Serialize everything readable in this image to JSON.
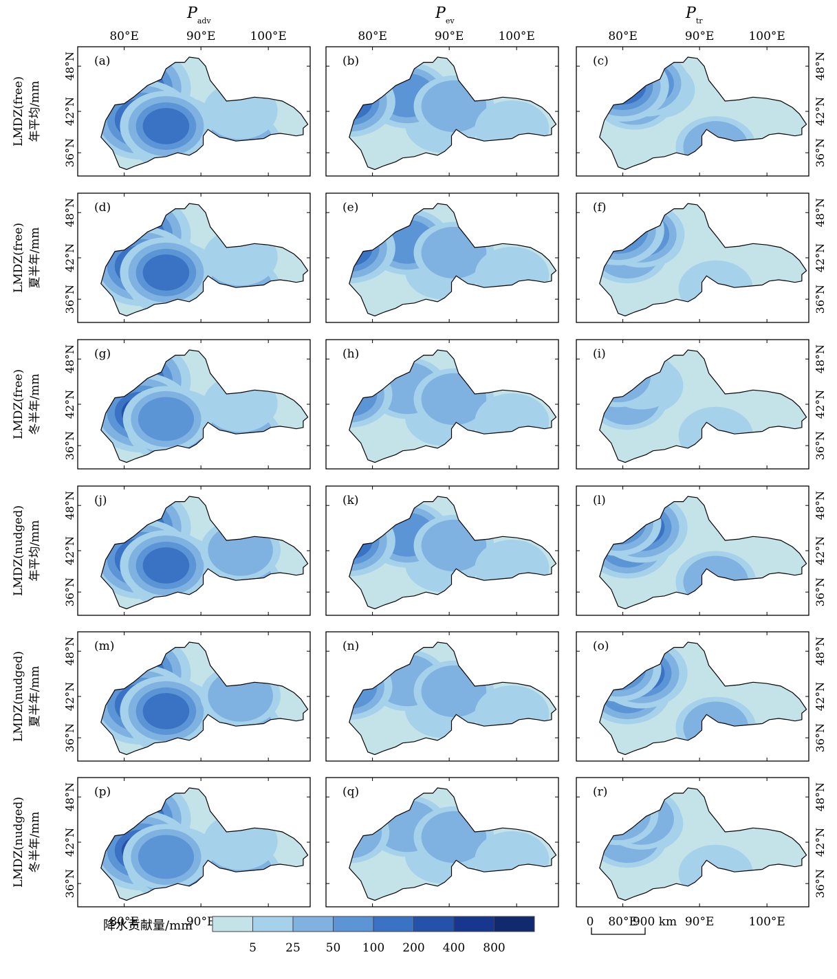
{
  "columns": [
    {
      "symbol": "P",
      "sub": "adv"
    },
    {
      "symbol": "P",
      "sub": "ev"
    },
    {
      "symbol": "P",
      "sub": "tr"
    }
  ],
  "rows": [
    {
      "line1": "LMDZ(free)",
      "line2": "年平均/mm"
    },
    {
      "line1": "LMDZ(free)",
      "line2": "夏半年/mm"
    },
    {
      "line1": "LMDZ(free)",
      "line2": "冬半年/mm"
    },
    {
      "line1": "LMDZ(nudged)",
      "line2": "年平均/mm"
    },
    {
      "line1": "LMDZ(nudged)",
      "line2": "夏半年/mm"
    },
    {
      "line1": "LMDZ(nudged)",
      "line2": "冬半年/mm"
    }
  ],
  "panel_labels": [
    "(a)",
    "(b)",
    "(c)",
    "(d)",
    "(e)",
    "(f)",
    "(g)",
    "(h)",
    "(i)",
    "(j)",
    "(k)",
    "(l)",
    "(m)",
    "(n)",
    "(o)",
    "(p)",
    "(q)",
    "(r)"
  ],
  "lon_ticks": [
    "80°E",
    "90°E",
    "100°E"
  ],
  "lat_ticks": [
    "48°N",
    "42°N",
    "36°N"
  ],
  "legend": {
    "title": "降水贡献量/mm",
    "breaks": [
      "5",
      "25",
      "50",
      "100",
      "200",
      "400",
      "800"
    ],
    "colors": [
      "#c3e3e9",
      "#a6d1ea",
      "#7fb2e1",
      "#5c95d6",
      "#3b73c4",
      "#2452a8",
      "#17378f",
      "#0f2a6e"
    ]
  },
  "scale_bar": {
    "zero": "0",
    "label": "900 km"
  },
  "panel_levels": [
    [
      [
        7,
        0.5,
        0.1
      ],
      [
        6,
        0.55,
        0.45
      ],
      [
        5,
        0.42,
        0.6
      ],
      [
        2,
        0.7,
        0.7
      ],
      [
        4,
        0.38,
        0.52
      ],
      [
        1,
        0.7,
        0.35
      ]
    ],
    [
      [
        1,
        0.5,
        0.5
      ],
      [
        3,
        0.35,
        0.18
      ],
      [
        2,
        0.55,
        0.3
      ],
      [
        4,
        0.1,
        0.25
      ],
      [
        1,
        0.8,
        0.55
      ]
    ],
    [
      [
        1,
        0.35,
        0.12
      ],
      [
        2,
        0.25,
        0.22
      ],
      [
        3,
        0.3,
        0.05
      ],
      [
        4,
        0.2,
        0.08
      ],
      [
        2,
        0.6,
        0.75
      ]
    ],
    [
      [
        7,
        0.5,
        0.1
      ],
      [
        6,
        0.55,
        0.45
      ],
      [
        5,
        0.42,
        0.6
      ],
      [
        2,
        0.7,
        0.7
      ],
      [
        4,
        0.38,
        0.52
      ],
      [
        1,
        0.7,
        0.35
      ]
    ],
    [
      [
        1,
        0.5,
        0.5
      ],
      [
        3,
        0.35,
        0.18
      ],
      [
        2,
        0.55,
        0.3
      ],
      [
        4,
        0.1,
        0.25
      ],
      [
        1,
        0.8,
        0.55
      ]
    ],
    [
      [
        1,
        0.3,
        0.15
      ],
      [
        2,
        0.22,
        0.3
      ],
      [
        3,
        0.28,
        0.1
      ],
      [
        4,
        0.18,
        0.05
      ],
      [
        1,
        0.6,
        0.7
      ]
    ],
    [
      [
        7,
        0.5,
        0.1
      ],
      [
        6,
        0.55,
        0.45
      ],
      [
        5,
        0.42,
        0.6
      ],
      [
        2,
        0.7,
        0.7
      ],
      [
        3,
        0.38,
        0.52
      ],
      [
        1,
        0.7,
        0.35
      ]
    ],
    [
      [
        1,
        0.5,
        0.5
      ],
      [
        2,
        0.35,
        0.18
      ],
      [
        2,
        0.55,
        0.3
      ],
      [
        3,
        0.1,
        0.25
      ],
      [
        1,
        0.8,
        0.55
      ]
    ],
    [
      [
        1,
        0.3,
        0.15
      ],
      [
        2,
        0.22,
        0.3
      ],
      [
        1,
        0.28,
        0.1
      ],
      [
        2,
        0.18,
        0.05
      ],
      [
        1,
        0.6,
        0.7
      ]
    ],
    [
      [
        7,
        0.5,
        0.1
      ],
      [
        6,
        0.55,
        0.45
      ],
      [
        5,
        0.42,
        0.6
      ],
      [
        2,
        0.7,
        0.7
      ],
      [
        4,
        0.38,
        0.52
      ],
      [
        2,
        0.7,
        0.35
      ]
    ],
    [
      [
        1,
        0.5,
        0.5
      ],
      [
        3,
        0.35,
        0.18
      ],
      [
        2,
        0.55,
        0.3
      ],
      [
        4,
        0.1,
        0.25
      ],
      [
        1,
        0.8,
        0.55
      ]
    ],
    [
      [
        1,
        0.3,
        0.15
      ],
      [
        3,
        0.22,
        0.3
      ],
      [
        4,
        0.28,
        0.1
      ],
      [
        3,
        0.18,
        0.05
      ],
      [
        2,
        0.6,
        0.7
      ]
    ],
    [
      [
        7,
        0.5,
        0.1
      ],
      [
        6,
        0.55,
        0.45
      ],
      [
        5,
        0.42,
        0.6
      ],
      [
        2,
        0.7,
        0.7
      ],
      [
        4,
        0.38,
        0.52
      ],
      [
        2,
        0.7,
        0.35
      ]
    ],
    [
      [
        1,
        0.5,
        0.5
      ],
      [
        2,
        0.35,
        0.18
      ],
      [
        2,
        0.55,
        0.3
      ],
      [
        3,
        0.1,
        0.25
      ],
      [
        1,
        0.8,
        0.55
      ]
    ],
    [
      [
        1,
        0.3,
        0.15
      ],
      [
        3,
        0.22,
        0.3
      ],
      [
        4,
        0.28,
        0.1
      ],
      [
        3,
        0.18,
        0.05
      ],
      [
        2,
        0.6,
        0.7
      ]
    ],
    [
      [
        7,
        0.5,
        0.1
      ],
      [
        6,
        0.55,
        0.45
      ],
      [
        5,
        0.42,
        0.6
      ],
      [
        2,
        0.7,
        0.7
      ],
      [
        3,
        0.38,
        0.52
      ],
      [
        1,
        0.7,
        0.35
      ]
    ],
    [
      [
        1,
        0.5,
        0.5
      ],
      [
        2,
        0.35,
        0.18
      ],
      [
        2,
        0.55,
        0.3
      ],
      [
        2,
        0.1,
        0.25
      ],
      [
        1,
        0.8,
        0.55
      ]
    ],
    [
      [
        1,
        0.3,
        0.15
      ],
      [
        2,
        0.22,
        0.3
      ],
      [
        2,
        0.28,
        0.1
      ],
      [
        2,
        0.18,
        0.05
      ],
      [
        1,
        0.6,
        0.7
      ]
    ]
  ]
}
